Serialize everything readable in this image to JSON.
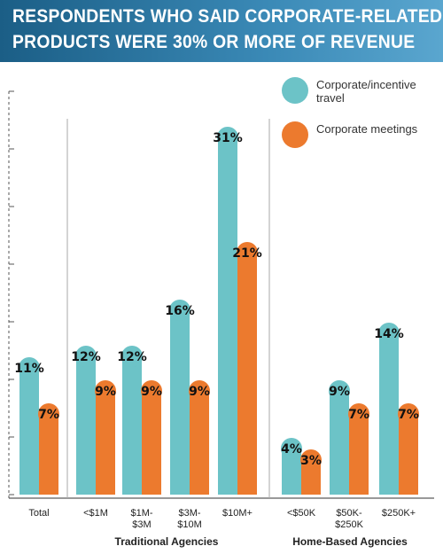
{
  "title": {
    "line1": "RESPONDENTS WHO SAID CORPORATE-RELATED",
    "line2": "PRODUCTS WERE 30% OR MORE OF REVENUE"
  },
  "chart_data": {
    "type": "bar",
    "title": "RESPONDENTS WHO SAID CORPORATE-RELATED PRODUCTS WERE 30% OR MORE OF REVENUE",
    "categories": [
      [
        "Total"
      ],
      [
        "<$1M"
      ],
      [
        "$1M-",
        "$3M"
      ],
      [
        "$3M-",
        "$10M"
      ],
      [
        "$10M+"
      ],
      [
        "<$50K"
      ],
      [
        "$50K-",
        "$250K"
      ],
      [
        "$250K+"
      ]
    ],
    "groups": [
      {
        "label": "Traditional Agencies",
        "categories": [
          1,
          2,
          3,
          4
        ]
      },
      {
        "label": "Home-Based Agencies",
        "categories": [
          5,
          6,
          7
        ]
      }
    ],
    "series": [
      {
        "name": "Corporate/incentive travel",
        "name_lines": [
          "Corporate/incentive",
          "travel"
        ],
        "color": "#6cc3c7",
        "values": [
          11,
          12,
          12,
          16,
          31,
          4,
          9,
          14
        ],
        "labels": [
          "11%",
          "12%",
          "12%",
          "16%",
          "31%",
          "4%",
          "9%",
          "14%"
        ]
      },
      {
        "name": "Corporate meetings",
        "name_lines": [
          "Corporate meetings"
        ],
        "color": "#ec7a2e",
        "values": [
          7,
          9,
          9,
          9,
          21,
          3,
          7,
          7
        ],
        "labels": [
          "7%",
          "9%",
          "9%",
          "9%",
          "21%",
          "3%",
          "7%",
          "7%"
        ]
      }
    ],
    "ylim": [
      0,
      35
    ],
    "legend": "top-right",
    "grid": false
  }
}
